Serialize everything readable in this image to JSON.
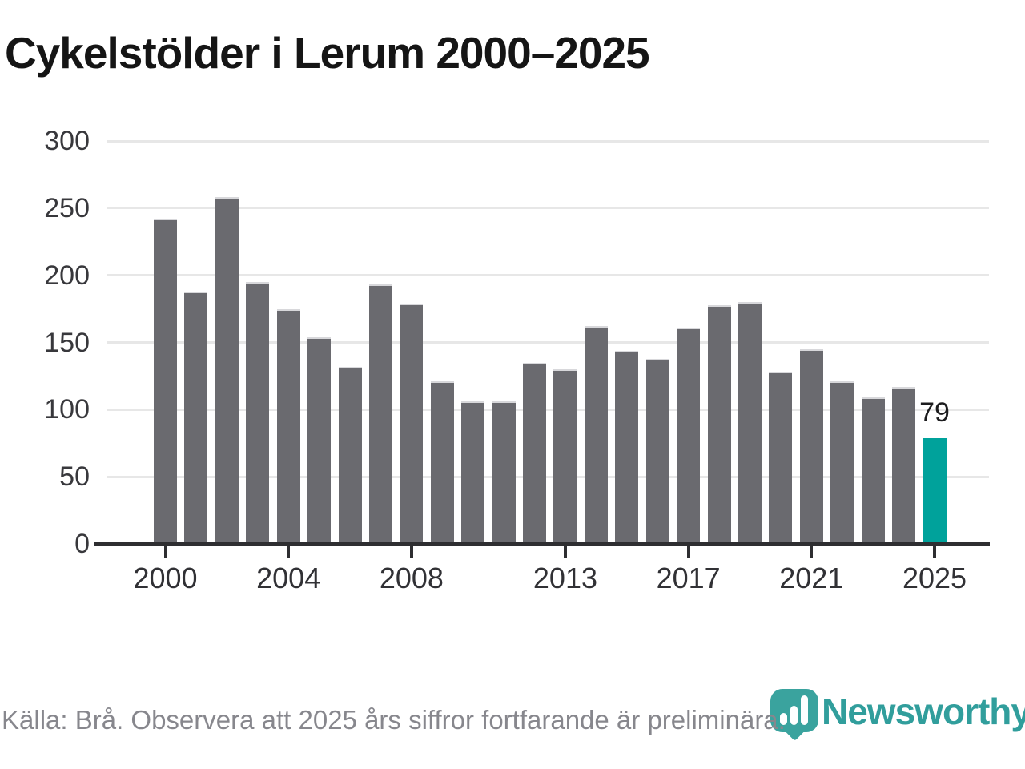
{
  "title": "Cykelstölder i Lerum 2000–2025",
  "source_note": "Källa: Brå. Observera att 2025 års siffror fortfarande är preliminära.",
  "branding": {
    "name": "Newsworthy",
    "icon": "newsworthy-bubble-barchart-icon"
  },
  "colors": {
    "bar": "#6a6a6f",
    "highlight": "#00a29b",
    "grid": "#e7e7e7",
    "axis": "#2e2e31",
    "tick_label": "#38383c",
    "title": "#151515",
    "footer": "#87878d",
    "brand": "#319e9c"
  },
  "chart_data": {
    "type": "bar",
    "title": "Cykelstölder i Lerum 2000–2025",
    "xlabel": "",
    "ylabel": "",
    "categories": [
      2000,
      2001,
      2002,
      2003,
      2004,
      2005,
      2006,
      2007,
      2008,
      2009,
      2010,
      2011,
      2012,
      2013,
      2014,
      2015,
      2016,
      2017,
      2018,
      2019,
      2020,
      2021,
      2022,
      2023,
      2024,
      2025
    ],
    "values": [
      242,
      188,
      258,
      195,
      175,
      154,
      132,
      193,
      179,
      121,
      106,
      106,
      135,
      130,
      162,
      144,
      138,
      161,
      178,
      180,
      128,
      145,
      121,
      109,
      117,
      79
    ],
    "highlight_index": 25,
    "highlight_label": "79",
    "ylim": [
      0,
      300
    ],
    "yticks": [
      0,
      50,
      100,
      150,
      200,
      250,
      300
    ],
    "xticks": [
      2000,
      2004,
      2008,
      2013,
      2017,
      2021,
      2025
    ],
    "grid": true,
    "legend": false
  }
}
